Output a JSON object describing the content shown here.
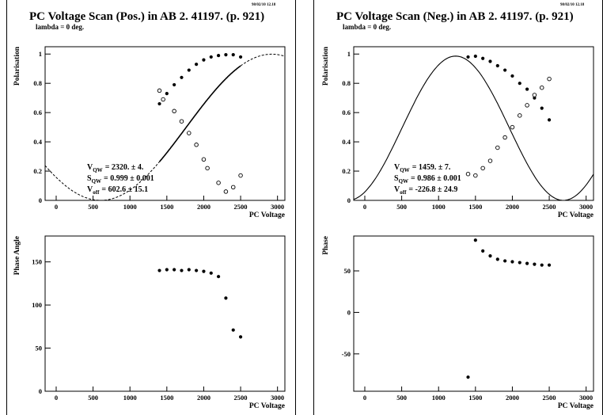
{
  "panels": [
    {
      "title": "PC Voltage Scan (Pos.) in AB 2.   41197. (p. 921)",
      "stamp": "98/02/10  12.18",
      "subtitle": "lambda = 0 deg.",
      "fit": {
        "vqw_label": "V",
        "vqw_sub": "QW",
        "vqw_value": "=  2320.  ±   4.",
        "sqw_label": "S",
        "sqw_sub": "QW",
        "sqw_value": "= 0.999  ± 0.001",
        "voff_label": "V",
        "voff_sub": "off",
        "voff_value": "= 602.6  ± 15.1"
      }
    },
    {
      "title": "PC Voltage Scan (Neg.) in AB 2.   41197. (p. 921)",
      "stamp": "98/02/10  12.18",
      "subtitle": "lambda = 0 deg.",
      "fit": {
        "vqw_label": "V",
        "vqw_sub": "QW",
        "vqw_value": "=  1459.  ±   7.",
        "sqw_label": "S",
        "sqw_sub": "QW",
        "sqw_value": "= 0.986  ± 0.001",
        "voff_label": "V",
        "voff_sub": "off",
        "voff_value": "= -226.8  ± 24.9"
      }
    }
  ],
  "chart_data": [
    {
      "type": "scatter",
      "title": "PC Voltage Scan (Pos.) in AB 2.   41197. (p. 921)",
      "xlabel": "PC Voltage",
      "ylabel": "Polarisation",
      "xlim": [
        -150,
        3100
      ],
      "ylim": [
        0,
        1.05
      ],
      "xticks": [
        0,
        500,
        1000,
        1500,
        2000,
        2500,
        3000
      ],
      "yticks": [
        0,
        0.2,
        0.4,
        0.6,
        0.8,
        1
      ],
      "fit_curve": {
        "vqw": 2320,
        "s": 0.999,
        "voff": 602.6,
        "solid_from": 1400,
        "solid_to": 2500
      },
      "series": [
        {
          "marker": "filled",
          "x": [
            1400,
            1500,
            1600,
            1700,
            1800,
            1900,
            2000,
            2100,
            2200,
            2300,
            2400,
            2500
          ],
          "y": [
            0.66,
            0.73,
            0.79,
            0.84,
            0.89,
            0.93,
            0.96,
            0.98,
            0.99,
            0.995,
            0.995,
            0.98
          ]
        },
        {
          "marker": "open",
          "x": [
            1400,
            1450,
            1600,
            1700,
            1800,
            1900,
            2000,
            2050,
            2200,
            2300,
            2400,
            2500
          ],
          "y": [
            0.75,
            0.69,
            0.61,
            0.54,
            0.46,
            0.38,
            0.28,
            0.22,
            0.12,
            0.06,
            0.09,
            0.17
          ]
        }
      ]
    },
    {
      "type": "scatter",
      "xlabel": "PC Voltage",
      "ylabel": "Phase Angle",
      "xlim": [
        -150,
        3100
      ],
      "ylim": [
        0,
        180
      ],
      "xticks": [
        0,
        500,
        1000,
        1500,
        2000,
        2500,
        3000
      ],
      "yticks": [
        0,
        50,
        100,
        150
      ],
      "series": [
        {
          "marker": "filled",
          "x": [
            1400,
            1500,
            1600,
            1700,
            1800,
            1900,
            2000,
            2100,
            2200,
            2300,
            2400,
            2500
          ],
          "y": [
            140,
            141,
            141,
            140,
            141,
            140,
            139,
            137,
            133,
            108,
            71,
            63
          ]
        }
      ]
    },
    {
      "type": "scatter",
      "title": "PC Voltage Scan (Neg.) in AB 2.   41197. (p. 921)",
      "xlabel": "PC Voltage",
      "ylabel": "Polarisation",
      "xlim": [
        -150,
        3100
      ],
      "ylim": [
        0,
        1.05
      ],
      "xticks": [
        0,
        500,
        1000,
        1500,
        2000,
        2500,
        3000
      ],
      "yticks": [
        0,
        0.2,
        0.4,
        0.6,
        0.8,
        1
      ],
      "fit_curve": {
        "vqw": 1459,
        "s": 0.986,
        "voff": -226.8,
        "solid_from": -150,
        "solid_to": 3100
      },
      "series": [
        {
          "marker": "filled",
          "x": [
            1400,
            1500,
            1600,
            1700,
            1800,
            1900,
            2000,
            2100,
            2200,
            2300,
            2400,
            2500
          ],
          "y": [
            0.98,
            0.985,
            0.97,
            0.95,
            0.92,
            0.89,
            0.85,
            0.8,
            0.76,
            0.7,
            0.63,
            0.55
          ]
        },
        {
          "marker": "open",
          "x": [
            1400,
            1500,
            1600,
            1700,
            1800,
            1900,
            2000,
            2100,
            2200,
            2300,
            2400,
            2500
          ],
          "y": [
            0.18,
            0.17,
            0.22,
            0.27,
            0.36,
            0.43,
            0.5,
            0.58,
            0.65,
            0.72,
            0.77,
            0.83
          ]
        }
      ]
    },
    {
      "type": "scatter",
      "xlabel": "PC Voltage",
      "ylabel": "Phase",
      "xlim": [
        -150,
        3100
      ],
      "ylim": [
        -95,
        92
      ],
      "xticks": [
        0,
        500,
        1000,
        1500,
        2000,
        2500,
        3000
      ],
      "yticks": [
        -50,
        0,
        50
      ],
      "series": [
        {
          "marker": "filled",
          "x": [
            1400,
            1500,
            1600,
            1700,
            1800,
            1900,
            2000,
            2100,
            2200,
            2300,
            2400,
            2500
          ],
          "y": [
            -78,
            87,
            74,
            68,
            64,
            62,
            61,
            60,
            59,
            58,
            57,
            57
          ]
        }
      ]
    }
  ]
}
